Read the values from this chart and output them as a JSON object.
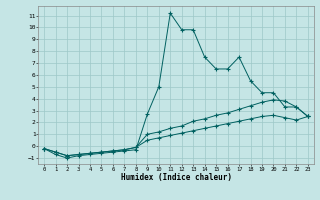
{
  "xlabel": "Humidex (Indice chaleur)",
  "xlim": [
    -0.5,
    23.5
  ],
  "ylim": [
    -1.5,
    11.8
  ],
  "yticks": [
    -1,
    0,
    1,
    2,
    3,
    4,
    5,
    6,
    7,
    8,
    9,
    10,
    11
  ],
  "xticks": [
    0,
    1,
    2,
    3,
    4,
    5,
    6,
    7,
    8,
    9,
    10,
    11,
    12,
    13,
    14,
    15,
    16,
    17,
    18,
    19,
    20,
    21,
    22,
    23
  ],
  "background_color": "#c5e5e5",
  "grid_color": "#9ec8c8",
  "line_color": "#006060",
  "x": [
    0,
    1,
    2,
    3,
    4,
    5,
    6,
    7,
    8,
    9,
    10,
    11,
    12,
    13,
    14,
    15,
    16,
    17,
    18,
    19,
    20,
    21,
    22,
    23
  ],
  "series1": [
    -0.2,
    -0.7,
    -1.0,
    -0.8,
    -0.7,
    -0.6,
    -0.5,
    -0.4,
    -0.3,
    2.7,
    5.0,
    11.2,
    9.8,
    9.8,
    7.5,
    6.5,
    6.5,
    7.5,
    5.5,
    4.5,
    4.5,
    3.3,
    3.3,
    2.5
  ],
  "series2": [
    -0.2,
    -0.5,
    -0.8,
    -0.7,
    -0.6,
    -0.5,
    -0.4,
    -0.3,
    -0.1,
    1.0,
    1.2,
    1.5,
    1.7,
    2.1,
    2.3,
    2.6,
    2.8,
    3.1,
    3.4,
    3.7,
    3.9,
    3.8,
    3.3,
    2.5
  ],
  "series3": [
    -0.2,
    -0.5,
    -0.8,
    -0.7,
    -0.6,
    -0.5,
    -0.4,
    -0.3,
    -0.1,
    0.5,
    0.7,
    0.9,
    1.1,
    1.3,
    1.5,
    1.7,
    1.9,
    2.1,
    2.3,
    2.5,
    2.6,
    2.4,
    2.2,
    2.5
  ]
}
